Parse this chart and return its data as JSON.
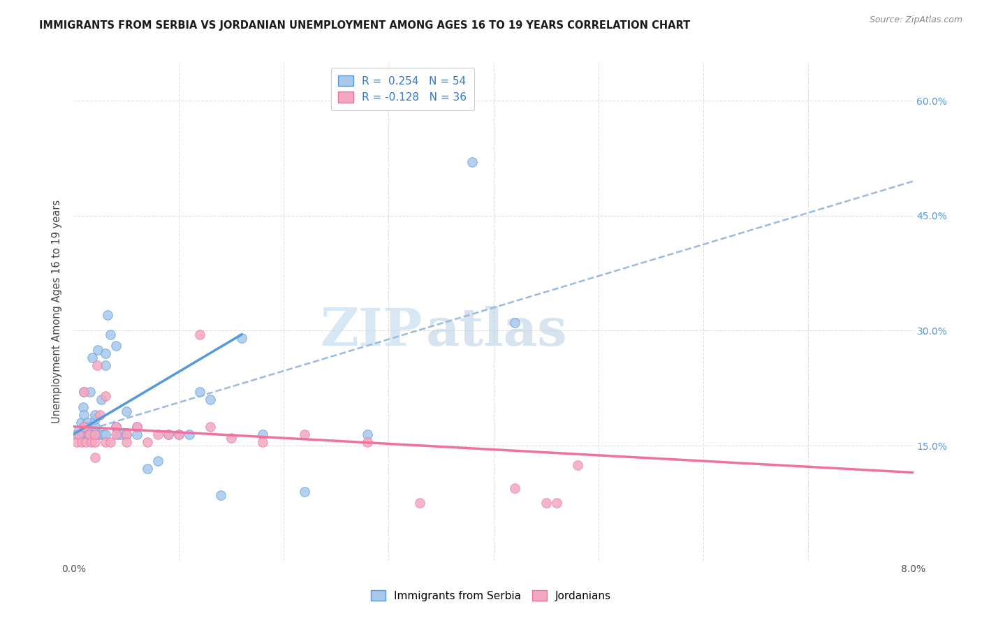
{
  "title": "IMMIGRANTS FROM SERBIA VS JORDANIAN UNEMPLOYMENT AMONG AGES 16 TO 19 YEARS CORRELATION CHART",
  "source": "Source: ZipAtlas.com",
  "ylabel": "Unemployment Among Ages 16 to 19 years",
  "y_ticks_vals": [
    0.15,
    0.3,
    0.45,
    0.6
  ],
  "y_ticks_right_labels": [
    "15.0%",
    "30.0%",
    "45.0%",
    "60.0%"
  ],
  "xlim": [
    0.0,
    0.08
  ],
  "ylim": [
    0.0,
    0.65
  ],
  "color_blue": "#a8c8ec",
  "color_pink": "#f4a8c0",
  "line_blue": "#5599dd",
  "line_pink": "#f070a0",
  "line_dashed_color": "#99bbdd",
  "grid_color": "#e0e0e0",
  "bg_color": "#ffffff",
  "serbia_x": [
    0.0003,
    0.0005,
    0.0007,
    0.0008,
    0.0009,
    0.001,
    0.001,
    0.001,
    0.001,
    0.0012,
    0.0013,
    0.0014,
    0.0015,
    0.0015,
    0.0016,
    0.0017,
    0.0018,
    0.0019,
    0.002,
    0.002,
    0.002,
    0.002,
    0.0022,
    0.0023,
    0.0025,
    0.0026,
    0.0028,
    0.003,
    0.003,
    0.003,
    0.0032,
    0.0035,
    0.004,
    0.004,
    0.0042,
    0.0045,
    0.005,
    0.005,
    0.006,
    0.006,
    0.007,
    0.008,
    0.009,
    0.01,
    0.011,
    0.012,
    0.013,
    0.014,
    0.016,
    0.018,
    0.022,
    0.028,
    0.038,
    0.042
  ],
  "serbia_y": [
    0.165,
    0.17,
    0.18,
    0.16,
    0.2,
    0.165,
    0.175,
    0.19,
    0.22,
    0.165,
    0.18,
    0.165,
    0.165,
    0.175,
    0.22,
    0.165,
    0.265,
    0.165,
    0.165,
    0.175,
    0.185,
    0.19,
    0.165,
    0.275,
    0.165,
    0.21,
    0.165,
    0.255,
    0.27,
    0.165,
    0.32,
    0.295,
    0.28,
    0.175,
    0.165,
    0.165,
    0.195,
    0.165,
    0.175,
    0.165,
    0.12,
    0.13,
    0.165,
    0.165,
    0.165,
    0.22,
    0.21,
    0.085,
    0.29,
    0.165,
    0.09,
    0.165,
    0.52,
    0.31
  ],
  "jordan_x": [
    0.0003,
    0.0005,
    0.0008,
    0.001,
    0.001,
    0.0012,
    0.0015,
    0.0017,
    0.002,
    0.002,
    0.002,
    0.0022,
    0.0025,
    0.003,
    0.003,
    0.0035,
    0.004,
    0.004,
    0.005,
    0.005,
    0.006,
    0.007,
    0.008,
    0.009,
    0.01,
    0.012,
    0.013,
    0.015,
    0.018,
    0.022,
    0.028,
    0.033,
    0.042,
    0.045,
    0.046,
    0.048
  ],
  "jordan_y": [
    0.155,
    0.165,
    0.155,
    0.22,
    0.175,
    0.155,
    0.165,
    0.155,
    0.155,
    0.135,
    0.165,
    0.255,
    0.19,
    0.155,
    0.215,
    0.155,
    0.175,
    0.165,
    0.165,
    0.155,
    0.175,
    0.155,
    0.165,
    0.165,
    0.165,
    0.295,
    0.175,
    0.16,
    0.155,
    0.165,
    0.155,
    0.075,
    0.095,
    0.075,
    0.075,
    0.125
  ],
  "blue_line_x0": 0.0,
  "blue_line_x1": 0.016,
  "blue_line_y0": 0.165,
  "blue_line_y1": 0.295,
  "dashed_line_x0": 0.0,
  "dashed_line_x1": 0.08,
  "dashed_line_y0": 0.165,
  "dashed_line_y1": 0.495,
  "pink_line_x0": 0.0,
  "pink_line_x1": 0.08,
  "pink_line_y0": 0.175,
  "pink_line_y1": 0.115,
  "watermark_zip": "ZIP",
  "watermark_atlas": "atlas",
  "legend_labels": [
    "R =  0.254   N = 54",
    "R = -0.128   N = 36"
  ],
  "bottom_legend": [
    "Immigrants from Serbia",
    "Jordanians"
  ]
}
